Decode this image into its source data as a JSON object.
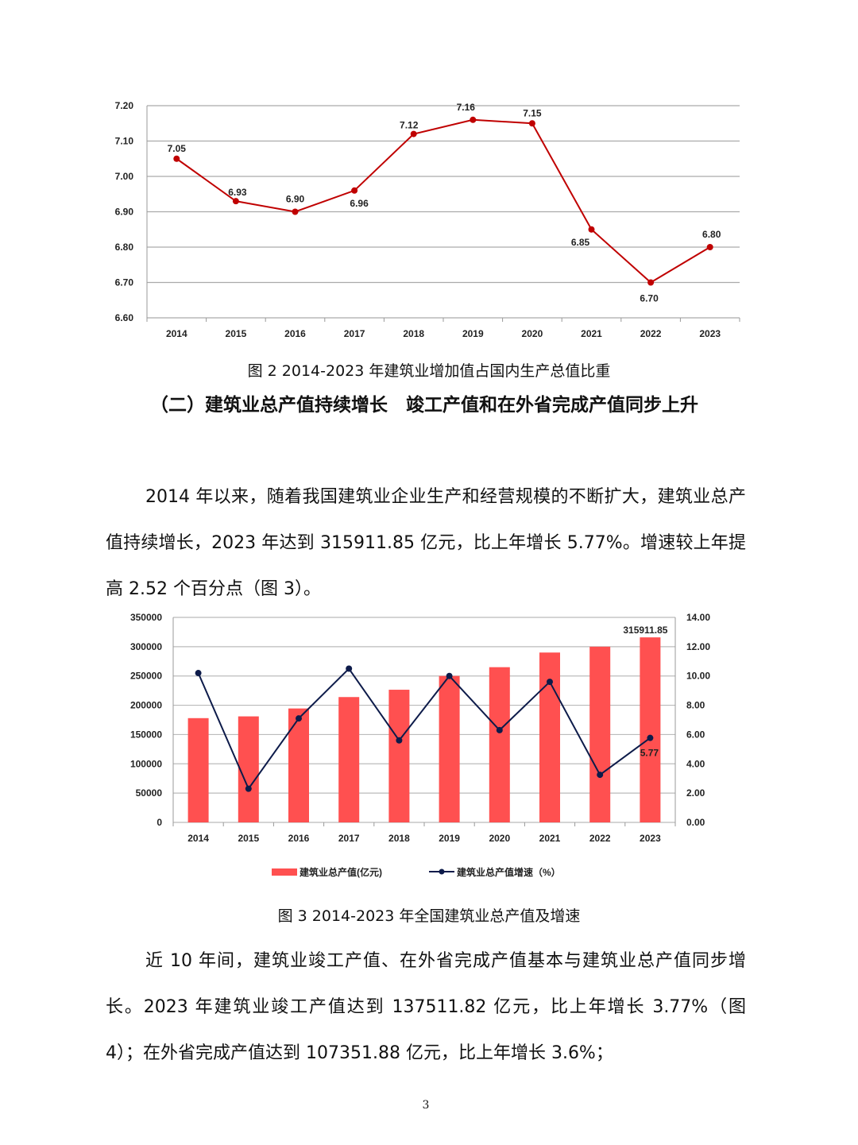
{
  "figure2": {
    "caption": "图 2   2014-2023 年建筑业增加值占国内生产总值比重",
    "chart_data": {
      "type": "line",
      "categories": [
        "2014",
        "2015",
        "2016",
        "2017",
        "2018",
        "2019",
        "2020",
        "2021",
        "2022",
        "2023"
      ],
      "series": [
        {
          "values": [
            7.05,
            6.93,
            6.9,
            6.96,
            7.12,
            7.16,
            7.15,
            6.85,
            6.7,
            6.8
          ],
          "data_labels": [
            "7.05",
            "6.93",
            "6.90",
            "6.96",
            "7.12",
            "7.16",
            "7.15",
            "6.85",
            "6.70",
            "6.80"
          ],
          "color": "#c00000"
        }
      ],
      "ylim": [
        6.6,
        7.2
      ],
      "yticks": [
        "6.60",
        "6.70",
        "6.80",
        "6.90",
        "7.00",
        "7.10",
        "7.20"
      ],
      "grid": true
    }
  },
  "section_heading": "（二）建筑业总产值持续增长　竣工产值和在外省完成产值同步上升",
  "paragraph1": "2014 年以来，随着我国建筑业企业生产和经营规模的不断扩大，建筑业总产值持续增长，2023 年达到 315911.85 亿元，比上年增长 5.77%。增速较上年提高 2.52 个百分点（图 3）。",
  "figure3": {
    "caption": "图 3   2014-2023 年全国建筑业总产值及增速",
    "chart_data": {
      "type": "bar+line",
      "categories": [
        "2014",
        "2015",
        "2016",
        "2017",
        "2018",
        "2019",
        "2020",
        "2021",
        "2022",
        "2023"
      ],
      "series": [
        {
          "name": "建筑业总产值(亿元)",
          "type": "bar",
          "axis": "left",
          "color": "#ff5050",
          "values": [
            178000,
            181000,
            194500,
            214000,
            226500,
            250000,
            265000,
            290000,
            300000,
            315911.85
          ]
        },
        {
          "name": "建筑业总产值增速（%）",
          "type": "line",
          "axis": "right",
          "color": "#0d1b4a",
          "values": [
            10.2,
            2.3,
            7.1,
            10.5,
            5.6,
            10.0,
            6.3,
            9.6,
            3.25,
            5.77
          ]
        }
      ],
      "data_labels": {
        "bar_2023": "315911.85",
        "line_2023": "5.77"
      },
      "ylim_left": [
        0,
        350000
      ],
      "yticks_left": [
        "0",
        "50000",
        "100000",
        "150000",
        "200000",
        "250000",
        "300000",
        "350000"
      ],
      "ylim_right": [
        0,
        14
      ],
      "yticks_right": [
        "0.00",
        "2.00",
        "4.00",
        "6.00",
        "8.00",
        "10.00",
        "12.00",
        "14.00"
      ],
      "grid": true,
      "legend": "bottom"
    }
  },
  "paragraph2": "近 10 年间，建筑业竣工产值、在外省完成产值基本与建筑业总产值同步增长。2023 年建筑业竣工产值达到 137511.82 亿元，比上年增长 3.77%（图 4）；在外省完成产值达到 107351.88 亿元，比上年增长 3.6%；",
  "page_number": "3"
}
